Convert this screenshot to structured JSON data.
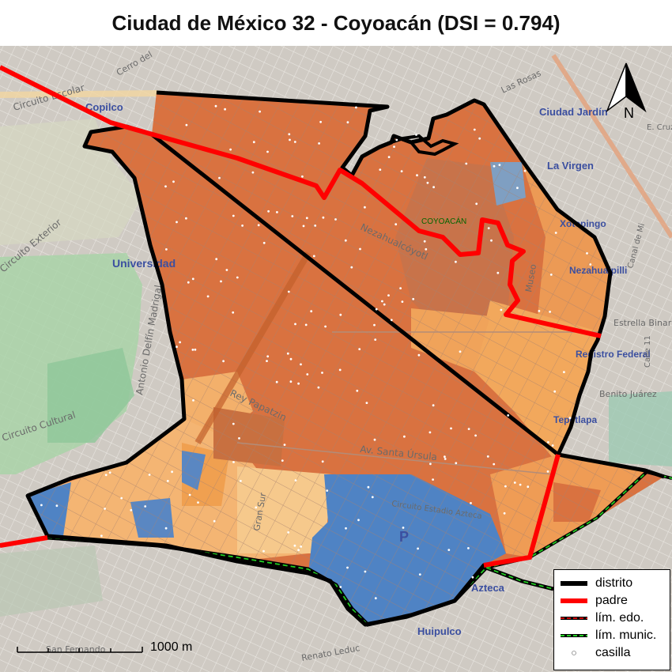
{
  "title": "Ciudad de México 32 - Coyoacán (DSI = 0.794)",
  "colors": {
    "basemap": "#c9c4bd",
    "park": "#a9d3a8",
    "district_fill_dark": "#d86f3a",
    "district_fill_mid": "#f0a35a",
    "district_fill_light": "#f6c98c",
    "district_fill_blue": "#4f83c4",
    "distrito_line": "#000000",
    "padre_line": "#ff0000",
    "edo_line": "#cc0000",
    "munic_line": "#22cc22",
    "casilla": "#ffffff"
  },
  "labels": {
    "municipio": "COYOACÁN",
    "north": "N",
    "scale": "1000 m"
  },
  "street_labels": [
    "Circuito Escolar",
    "Circuito Exterior",
    "Cerro del",
    "Copilco",
    "Universidad",
    "Antonio Delfín Madrigal",
    "Circuito Cultural",
    "Nezahualcóyotl",
    "Rey Papatzin",
    "Av. Santa Úrsula",
    "Gran Sur",
    "Circuito Estadio Azteca",
    "Ciudad Jardín",
    "La Virgen",
    "Las Rosas",
    "Xotepingo",
    "Nezahualpilli",
    "Estrella Binaria",
    "Registro Federal",
    "Benito Juárez",
    "Tepetlapa",
    "Azteca",
    "Huipulco",
    "Renato Leduc",
    "San Fernando",
    "Museo",
    "P",
    "E. Cruz",
    "Calle 11",
    "Canal de Mi"
  ],
  "legend": [
    {
      "label": "distrito",
      "kind": "distrito"
    },
    {
      "label": "padre",
      "kind": "padre"
    },
    {
      "label": "lím. edo.",
      "kind": "edo"
    },
    {
      "label": "lím. munic.",
      "kind": "munic"
    },
    {
      "label": "casilla",
      "kind": "casilla"
    }
  ],
  "casillas_count": 190
}
